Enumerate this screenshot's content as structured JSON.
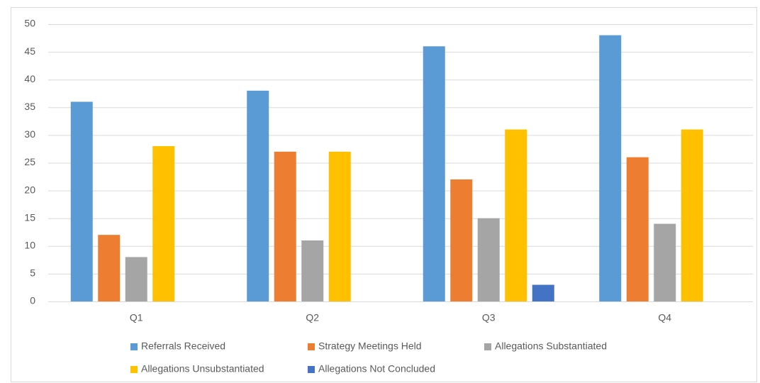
{
  "chart_data": {
    "type": "bar",
    "categories": [
      "Q1",
      "Q2",
      "Q3",
      "Q4"
    ],
    "series": [
      {
        "name": "Referrals Received",
        "color": "#5b9bd5",
        "values": [
          36,
          38,
          46,
          48
        ]
      },
      {
        "name": "Strategy Meetings Held",
        "color": "#ed7d31",
        "values": [
          12,
          27,
          22,
          26
        ]
      },
      {
        "name": "Allegations Substantiated",
        "color": "#a5a5a5",
        "values": [
          8,
          11,
          15,
          14
        ]
      },
      {
        "name": "Allegations Unsubstantiated",
        "color": "#ffc000",
        "values": [
          28,
          27,
          31,
          31
        ]
      },
      {
        "name": "Allegations Not Concluded",
        "color": "#4472c4",
        "values": [
          0,
          0,
          3,
          0
        ]
      }
    ],
    "ylim": [
      0,
      50
    ],
    "yticks": [
      0,
      5,
      10,
      15,
      20,
      25,
      30,
      35,
      40,
      45,
      50
    ],
    "grid": true,
    "legend": "bottom"
  }
}
